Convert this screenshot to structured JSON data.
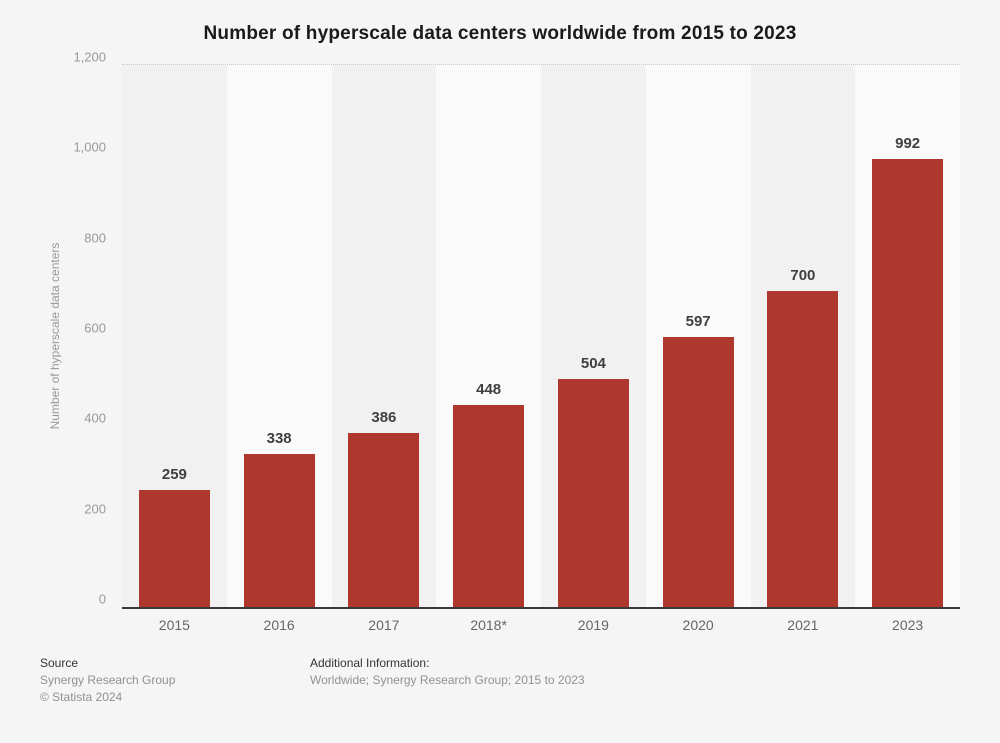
{
  "page": {
    "background_color": "#f5f5f5"
  },
  "chart_data": {
    "type": "bar",
    "title": "Number of hyperscale data centers worldwide from 2015 to 2023",
    "xlabel": "",
    "ylabel": "Number of hyperscale data centers",
    "categories": [
      "2015",
      "2016",
      "2017",
      "2018*",
      "2019",
      "2020",
      "2021",
      "2023"
    ],
    "values": [
      259,
      338,
      386,
      448,
      504,
      597,
      700,
      992
    ],
    "ylim": [
      0,
      1200
    ],
    "yticks": [
      0,
      200,
      400,
      600,
      800,
      1000,
      1200
    ],
    "ytick_labels": [
      "0",
      "200",
      "400",
      "600",
      "800",
      "1,000",
      "1,200"
    ],
    "grid": "horizontal-dotted",
    "legend": "none",
    "bar_color": "#ae382d",
    "grid_color": "#cbcbcb",
    "axis_line_color": "#3a3a3a",
    "column_stripe_colors": [
      "#f1f1f1",
      "#fafafa"
    ],
    "value_label_color": "#3f3f3f"
  },
  "footer": {
    "source_label": "Source",
    "source_name": "Synergy Research Group",
    "copyright": "© Statista 2024",
    "additional_label": "Additional Information:",
    "additional_text": "Worldwide; Synergy Research Group; 2015 to 2023"
  }
}
